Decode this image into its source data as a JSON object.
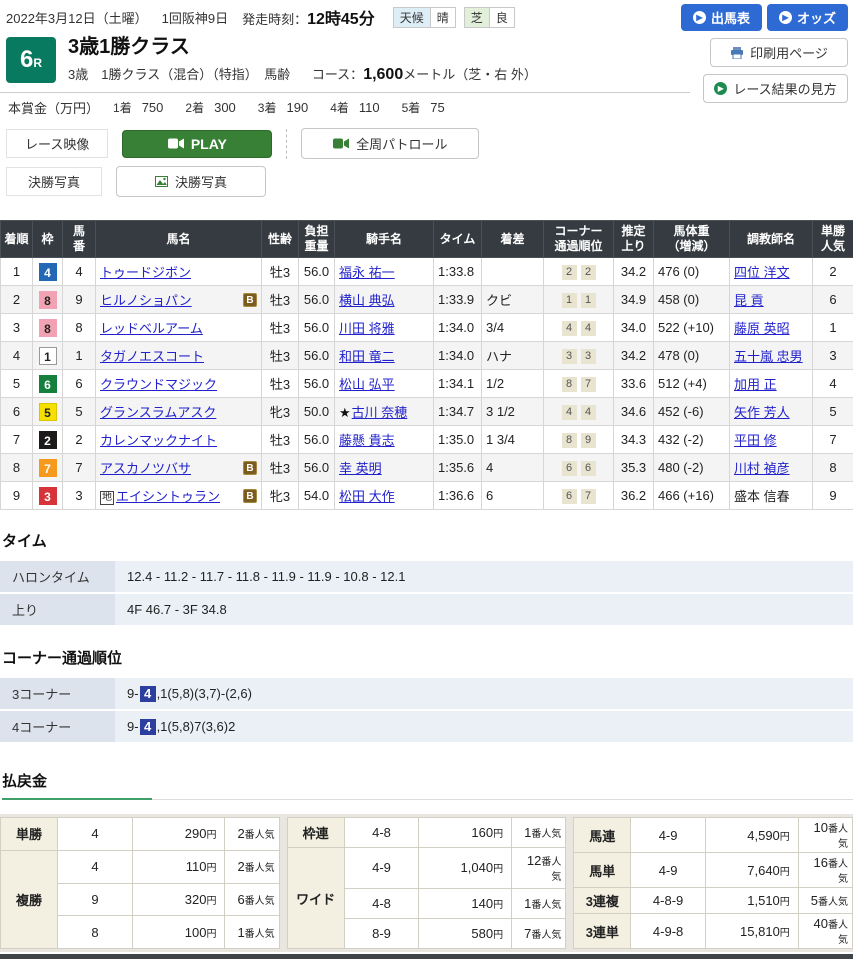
{
  "colors": {
    "header_bg": "#353b40",
    "link": "#2222cc",
    "teal": "#087a60",
    "play_green": "#378035",
    "button_blue": "#2e6ad4",
    "highlight_blue": "#2c3e9e",
    "badge_brown": "#7a5c20"
  },
  "icons": {
    "arrow_circle": "▶",
    "play_camera": "video-camera",
    "photo": "photo-frame",
    "printer": "printer"
  },
  "header": {
    "date": "2022年3月12日（土曜）",
    "meeting": "1回阪神9日",
    "start_label": "発走時刻：",
    "start_time": "12時45分",
    "weather_label": "天候",
    "weather_value": "晴",
    "turf_label": "芝",
    "turf_value": "良",
    "buttons": {
      "entry": "出馬表",
      "odds": "オッズ",
      "print": "印刷用ページ",
      "guide": "レース結果の見方"
    }
  },
  "race": {
    "number": "6",
    "number_suffix": "R",
    "title": "3歳1勝クラス",
    "conditions": "3歳　1勝クラス（混合）（特指）　馬齢",
    "course_label": "コース：",
    "course_distance": "1,600",
    "course_suffix": "メートル（芝・右 外）"
  },
  "prize": {
    "label": "本賞金（万円）",
    "items": [
      {
        "place": "1着",
        "amount": "750"
      },
      {
        "place": "2着",
        "amount": "300"
      },
      {
        "place": "3着",
        "amount": "190"
      },
      {
        "place": "4着",
        "amount": "110"
      },
      {
        "place": "5着",
        "amount": "75"
      }
    ]
  },
  "media": {
    "video_label": "レース映像",
    "play_button": "PLAY",
    "patrol_button": "全周パトロール",
    "photo_label": "決勝写真",
    "photo_button": "決勝写真"
  },
  "results": {
    "headers": [
      "着順",
      "枠",
      "馬\n番",
      "馬名",
      "性齢",
      "負担\n重量",
      "騎手名",
      "タイム",
      "着差",
      "コーナー\n通過順位",
      "推定\n上り",
      "馬体重\n（増減）",
      "調教師名",
      "単勝\n人気"
    ],
    "frame_colors": {
      "1": {
        "bg": "#ffffff",
        "fg": "#222222",
        "border": "#999999"
      },
      "2": {
        "bg": "#1d1a1a",
        "fg": "#ffffff",
        "border": "#1d1a1a"
      },
      "3": {
        "bg": "#d63438",
        "fg": "#ffffff",
        "border": "#d63438"
      },
      "4": {
        "bg": "#2268b5",
        "fg": "#ffffff",
        "border": "#2268b5"
      },
      "5": {
        "bg": "#f5e000",
        "fg": "#222222",
        "border": "#d8c400"
      },
      "6": {
        "bg": "#15803d",
        "fg": "#ffffff",
        "border": "#15803d"
      },
      "7": {
        "bg": "#f59a1c",
        "fg": "#ffffff",
        "border": "#f59a1c"
      },
      "8": {
        "bg": "#f2a3b3",
        "fg": "#222222",
        "border": "#f2a3b3"
      }
    },
    "rows": [
      {
        "pos": "1",
        "frame": "4",
        "num": "4",
        "horse": "トゥードジボン",
        "chi": false,
        "blinker": false,
        "sexage": "牡3",
        "weight": "56.0",
        "jockey": "福永 祐一",
        "star": false,
        "time": "1:33.8",
        "margin": "",
        "corners": [
          "2",
          "2"
        ],
        "last3f": "34.2",
        "body": "476 (0)",
        "trainer": "四位 洋文",
        "trainer_link": true,
        "pop": "2"
      },
      {
        "pos": "2",
        "frame": "8",
        "num": "9",
        "horse": "ヒルノショパン",
        "chi": false,
        "blinker": true,
        "sexage": "牡3",
        "weight": "56.0",
        "jockey": "横山 典弘",
        "star": false,
        "time": "1:33.9",
        "margin": "クビ",
        "corners": [
          "1",
          "1"
        ],
        "last3f": "34.9",
        "body": "458 (0)",
        "trainer": "昆 貢",
        "trainer_link": true,
        "pop": "6"
      },
      {
        "pos": "3",
        "frame": "8",
        "num": "8",
        "horse": "レッドベルアーム",
        "chi": false,
        "blinker": false,
        "sexage": "牡3",
        "weight": "56.0",
        "jockey": "川田 将雅",
        "star": false,
        "time": "1:34.0",
        "margin": "3/4",
        "corners": [
          "4",
          "4"
        ],
        "last3f": "34.0",
        "body": "522 (+10)",
        "trainer": "藤原 英昭",
        "trainer_link": true,
        "pop": "1"
      },
      {
        "pos": "4",
        "frame": "1",
        "num": "1",
        "horse": "タガノエスコート",
        "chi": false,
        "blinker": false,
        "sexage": "牡3",
        "weight": "56.0",
        "jockey": "和田 竜二",
        "star": false,
        "time": "1:34.0",
        "margin": "ハナ",
        "corners": [
          "3",
          "3"
        ],
        "last3f": "34.2",
        "body": "478 (0)",
        "trainer": "五十嵐 忠男",
        "trainer_link": true,
        "pop": "3"
      },
      {
        "pos": "5",
        "frame": "6",
        "num": "6",
        "horse": "クラウンドマジック",
        "chi": false,
        "blinker": false,
        "sexage": "牡3",
        "weight": "56.0",
        "jockey": "松山 弘平",
        "star": false,
        "time": "1:34.1",
        "margin": "1/2",
        "corners": [
          "8",
          "7"
        ],
        "last3f": "33.6",
        "body": "512 (+4)",
        "trainer": "加用 正",
        "trainer_link": true,
        "pop": "4"
      },
      {
        "pos": "6",
        "frame": "5",
        "num": "5",
        "horse": "グランスラムアスク",
        "chi": false,
        "blinker": false,
        "sexage": "牝3",
        "weight": "50.0",
        "jockey": "古川 奈穂",
        "star": true,
        "time": "1:34.7",
        "margin": "3 1/2",
        "corners": [
          "4",
          "4"
        ],
        "last3f": "34.6",
        "body": "452 (-6)",
        "trainer": "矢作 芳人",
        "trainer_link": true,
        "pop": "5"
      },
      {
        "pos": "7",
        "frame": "2",
        "num": "2",
        "horse": "カレンマックナイト",
        "chi": false,
        "blinker": false,
        "sexage": "牡3",
        "weight": "56.0",
        "jockey": "藤懸 貴志",
        "star": false,
        "time": "1:35.0",
        "margin": "1 3/4",
        "corners": [
          "8",
          "9"
        ],
        "last3f": "34.3",
        "body": "432 (-2)",
        "trainer": "平田 修",
        "trainer_link": true,
        "pop": "7"
      },
      {
        "pos": "8",
        "frame": "7",
        "num": "7",
        "horse": "アスカノツバサ",
        "chi": false,
        "blinker": true,
        "sexage": "牡3",
        "weight": "56.0",
        "jockey": "幸 英明",
        "star": false,
        "time": "1:35.6",
        "margin": "4",
        "corners": [
          "6",
          "6"
        ],
        "last3f": "35.3",
        "body": "480 (-2)",
        "trainer": "川村 禎彦",
        "trainer_link": true,
        "pop": "8"
      },
      {
        "pos": "9",
        "frame": "3",
        "num": "3",
        "horse": "エイシントゥラン",
        "chi": true,
        "chi_mark": "地",
        "blinker": true,
        "sexage": "牝3",
        "weight": "54.0",
        "jockey": "松田 大作",
        "star": false,
        "time": "1:36.6",
        "margin": "6",
        "corners": [
          "6",
          "7"
        ],
        "last3f": "36.2",
        "body": "466 (+16)",
        "trainer": "盛本 信春",
        "trainer_link": false,
        "pop": "9"
      }
    ],
    "blinker_mark": "B"
  },
  "time_section": {
    "title": "タイム",
    "rows": [
      {
        "label": "ハロンタイム",
        "value": "12.4 - 11.2 - 11.7 - 11.8 - 11.9 - 11.9 - 10.8 - 12.1"
      },
      {
        "label": "上り",
        "value": "4F 46.7 - 3F 34.8"
      }
    ]
  },
  "corner_section": {
    "title": "コーナー通過順位",
    "rows": [
      {
        "label": "3コーナー",
        "pre": "9-",
        "highlight": "4",
        "post": ",1(5,8)(3,7)-(2,6)"
      },
      {
        "label": "4コーナー",
        "pre": "9-",
        "highlight": "4",
        "post": ",1(5,8)7(3,6)2"
      }
    ]
  },
  "payout": {
    "title": "払戻金",
    "yen_suffix": "円",
    "pop_suffix": "番人気",
    "tables": [
      {
        "groups": [
          {
            "label": "単勝",
            "rows": [
              {
                "combo": "4",
                "amount": "290",
                "pop": "2"
              }
            ]
          },
          {
            "label": "複勝",
            "rows": [
              {
                "combo": "4",
                "amount": "110",
                "pop": "2"
              },
              {
                "combo": "9",
                "amount": "320",
                "pop": "6"
              },
              {
                "combo": "8",
                "amount": "100",
                "pop": "1"
              }
            ]
          }
        ]
      },
      {
        "groups": [
          {
            "label": "枠連",
            "rows": [
              {
                "combo": "4-8",
                "amount": "160",
                "pop": "1"
              }
            ]
          },
          {
            "label": "ワイド",
            "rows": [
              {
                "combo": "4-9",
                "amount": "1,040",
                "pop": "12"
              },
              {
                "combo": "4-8",
                "amount": "140",
                "pop": "1"
              },
              {
                "combo": "8-9",
                "amount": "580",
                "pop": "7"
              }
            ]
          }
        ]
      },
      {
        "groups": [
          {
            "label": "馬連",
            "rows": [
              {
                "combo": "4-9",
                "amount": "4,590",
                "pop": "10"
              }
            ]
          },
          {
            "label": "馬単",
            "rows": [
              {
                "combo": "4-9",
                "amount": "7,640",
                "pop": "16"
              }
            ]
          },
          {
            "label": "3連複",
            "rows": [
              {
                "combo": "4-8-9",
                "amount": "1,510",
                "pop": "5"
              }
            ]
          },
          {
            "label": "3連単",
            "rows": [
              {
                "combo": "4-9-8",
                "amount": "15,810",
                "pop": "40"
              }
            ]
          }
        ]
      }
    ]
  }
}
